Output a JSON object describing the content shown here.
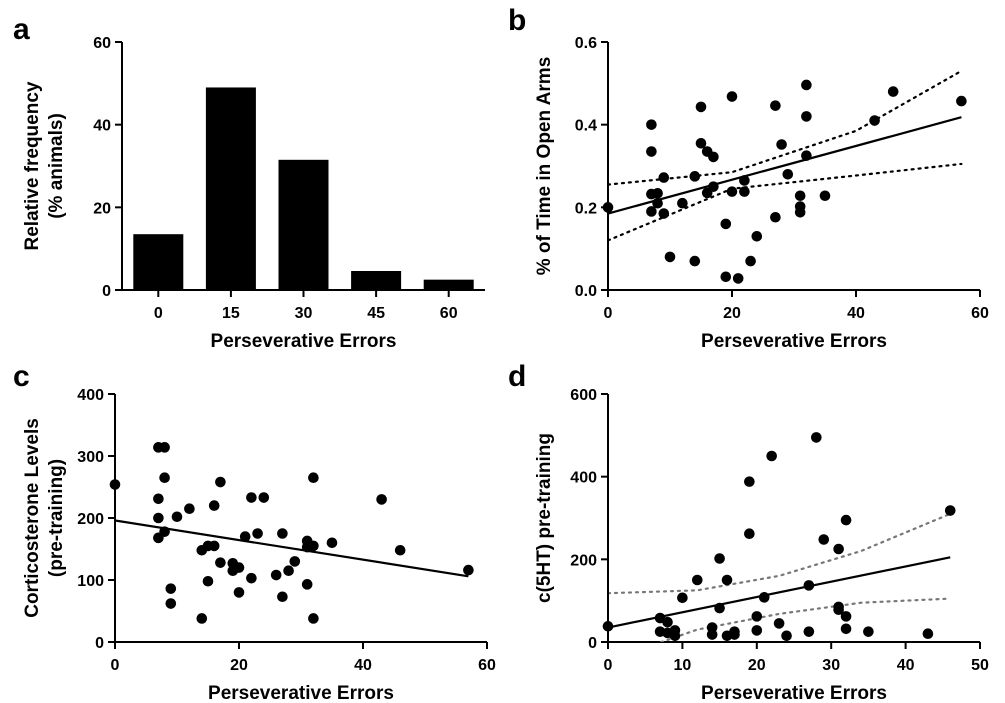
{
  "colors": {
    "marks": "#000000",
    "ci_b": "#000000",
    "ci_d": "#777777"
  },
  "chart_data": [
    {
      "panel": "a",
      "type": "bar",
      "xlabel": "Perseverative Errors",
      "ylabel": [
        "Relative frequency",
        "(% animals)"
      ],
      "ylim": [
        0,
        60
      ],
      "yticks": [
        0,
        20,
        40,
        60
      ],
      "categories": [
        "0",
        "15",
        "30",
        "45",
        "60"
      ],
      "values": [
        13.5,
        49,
        31.5,
        4.6,
        2.5
      ]
    },
    {
      "panel": "b",
      "type": "scatter",
      "xlabel": "Perseverative Errors",
      "ylabel": "% of Time in Open Arms",
      "xlim": [
        0,
        60
      ],
      "ylim": [
        0,
        0.6
      ],
      "xticks": [
        0,
        20,
        40,
        60
      ],
      "yticks": [
        0,
        0.2,
        0.4,
        0.6
      ],
      "ytick_labels": [
        "0.0",
        "0.2",
        "0.4",
        "0.6"
      ],
      "points": [
        [
          0,
          0.2
        ],
        [
          7,
          0.4
        ],
        [
          7,
          0.335
        ],
        [
          7,
          0.232
        ],
        [
          7,
          0.19
        ],
        [
          8,
          0.234
        ],
        [
          8,
          0.21
        ],
        [
          9,
          0.272
        ],
        [
          9,
          0.185
        ],
        [
          10,
          0.08
        ],
        [
          12,
          0.21
        ],
        [
          14,
          0.275
        ],
        [
          14,
          0.07
        ],
        [
          15,
          0.443
        ],
        [
          15,
          0.355
        ],
        [
          16,
          0.335
        ],
        [
          16,
          0.235
        ],
        [
          17,
          0.25
        ],
        [
          17,
          0.322
        ],
        [
          19,
          0.032
        ],
        [
          19,
          0.16
        ],
        [
          20,
          0.468
        ],
        [
          20,
          0.238
        ],
        [
          21,
          0.028
        ],
        [
          22,
          0.265
        ],
        [
          22,
          0.238
        ],
        [
          23,
          0.07
        ],
        [
          24,
          0.13
        ],
        [
          27,
          0.446
        ],
        [
          27,
          0.176
        ],
        [
          28,
          0.352
        ],
        [
          29,
          0.28
        ],
        [
          31,
          0.228
        ],
        [
          31,
          0.202
        ],
        [
          31,
          0.188
        ],
        [
          32,
          0.496
        ],
        [
          32,
          0.42
        ],
        [
          32,
          0.325
        ],
        [
          35,
          0.228
        ],
        [
          43,
          0.41
        ],
        [
          46,
          0.48
        ],
        [
          57,
          0.457
        ]
      ],
      "fit_line": [
        [
          0,
          0.185
        ],
        [
          57,
          0.418
        ]
      ],
      "ci_upper": [
        [
          0,
          0.255
        ],
        [
          20,
          0.285
        ],
        [
          40,
          0.385
        ],
        [
          57,
          0.53
        ]
      ],
      "ci_lower": [
        [
          0,
          0.12
        ],
        [
          20,
          0.245
        ],
        [
          40,
          0.277
        ],
        [
          57,
          0.305
        ]
      ]
    },
    {
      "panel": "c",
      "type": "scatter",
      "xlabel": "Perseverative Errors",
      "ylabel": [
        "Corticosterone Levels",
        "(pre-training)"
      ],
      "xlim": [
        0,
        60
      ],
      "ylim": [
        0,
        400
      ],
      "xticks": [
        0,
        20,
        40,
        60
      ],
      "yticks": [
        0,
        100,
        200,
        300,
        400
      ],
      "points": [
        [
          0,
          254
        ],
        [
          7,
          314
        ],
        [
          8,
          314
        ],
        [
          8,
          265
        ],
        [
          7,
          231
        ],
        [
          7,
          200
        ],
        [
          7,
          168
        ],
        [
          8,
          178
        ],
        [
          9,
          86
        ],
        [
          9,
          62
        ],
        [
          10,
          202
        ],
        [
          12,
          215
        ],
        [
          14,
          148
        ],
        [
          14,
          38
        ],
        [
          15,
          155
        ],
        [
          15,
          98
        ],
        [
          16,
          220
        ],
        [
          16,
          155
        ],
        [
          17,
          258
        ],
        [
          17,
          128
        ],
        [
          19,
          127
        ],
        [
          19,
          115
        ],
        [
          20,
          120
        ],
        [
          20,
          80
        ],
        [
          21,
          170
        ],
        [
          22,
          233
        ],
        [
          22,
          103
        ],
        [
          23,
          175
        ],
        [
          24,
          233
        ],
        [
          26,
          108
        ],
        [
          27,
          175
        ],
        [
          27,
          73
        ],
        [
          28,
          115
        ],
        [
          29,
          130
        ],
        [
          31,
          163
        ],
        [
          31,
          153
        ],
        [
          31,
          93
        ],
        [
          32,
          265
        ],
        [
          32,
          155
        ],
        [
          32,
          38
        ],
        [
          35,
          160
        ],
        [
          43,
          230
        ],
        [
          46,
          148
        ],
        [
          57,
          116
        ]
      ],
      "fit_line": [
        [
          0,
          196
        ],
        [
          57,
          106
        ]
      ]
    },
    {
      "panel": "d",
      "type": "scatter",
      "xlabel": "Perseverative Errors",
      "ylabel": "c(5HT) pre-training",
      "xlim": [
        0,
        50
      ],
      "ylim": [
        0,
        600
      ],
      "xticks": [
        0,
        10,
        20,
        30,
        40,
        50
      ],
      "yticks": [
        0,
        200,
        400,
        600
      ],
      "points": [
        [
          0,
          38
        ],
        [
          7,
          58
        ],
        [
          7,
          25
        ],
        [
          8,
          48
        ],
        [
          8,
          22
        ],
        [
          9,
          28
        ],
        [
          9,
          15
        ],
        [
          10,
          107
        ],
        [
          12,
          150
        ],
        [
          14,
          35
        ],
        [
          14,
          18
        ],
        [
          15,
          202
        ],
        [
          15,
          82
        ],
        [
          16,
          150
        ],
        [
          16,
          15
        ],
        [
          17,
          25
        ],
        [
          17,
          18
        ],
        [
          19,
          388
        ],
        [
          19,
          262
        ],
        [
          20,
          62
        ],
        [
          20,
          28
        ],
        [
          21,
          108
        ],
        [
          22,
          450
        ],
        [
          23,
          45
        ],
        [
          24,
          15
        ],
        [
          27,
          137
        ],
        [
          27,
          25
        ],
        [
          28,
          495
        ],
        [
          29,
          248
        ],
        [
          31,
          225
        ],
        [
          31,
          85
        ],
        [
          31,
          78
        ],
        [
          32,
          295
        ],
        [
          32,
          62
        ],
        [
          32,
          32
        ],
        [
          35,
          25
        ],
        [
          43,
          20
        ],
        [
          46,
          318
        ]
      ],
      "fit_line": [
        [
          0,
          35
        ],
        [
          46,
          205
        ]
      ],
      "ci_upper": [
        [
          0,
          118
        ],
        [
          12,
          125
        ],
        [
          23,
          160
        ],
        [
          34,
          220
        ],
        [
          46,
          310
        ]
      ],
      "ci_lower": [
        [
          0,
          -45
        ],
        [
          12,
          30
        ],
        [
          23,
          68
        ],
        [
          34,
          95
        ],
        [
          46,
          105
        ]
      ]
    }
  ]
}
